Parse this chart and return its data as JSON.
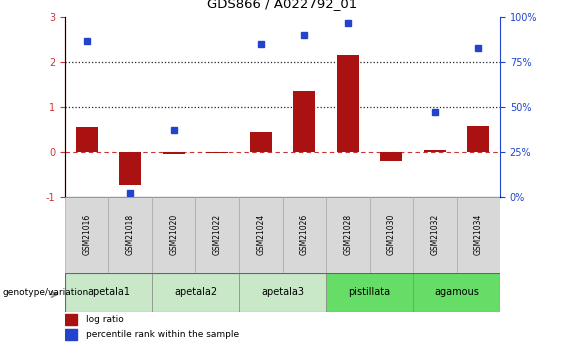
{
  "title": "GDS866 / A022792_01",
  "samples": [
    "GSM21016",
    "GSM21018",
    "GSM21020",
    "GSM21022",
    "GSM21024",
    "GSM21026",
    "GSM21028",
    "GSM21030",
    "GSM21032",
    "GSM21034"
  ],
  "log_ratio": [
    0.55,
    -0.75,
    -0.05,
    -0.03,
    0.45,
    1.35,
    2.15,
    -0.2,
    0.03,
    0.58
  ],
  "percentile_rank_pct": [
    87,
    2,
    37,
    null,
    85,
    90,
    97,
    null,
    47,
    83
  ],
  "groups": [
    {
      "label": "apetala1",
      "start": 0,
      "end": 2,
      "color": "#c8e8c8"
    },
    {
      "label": "apetala2",
      "start": 2,
      "end": 4,
      "color": "#c8e8c8"
    },
    {
      "label": "apetala3",
      "start": 4,
      "end": 6,
      "color": "#c8e8c8"
    },
    {
      "label": "pistillata",
      "start": 6,
      "end": 8,
      "color": "#66dd66"
    },
    {
      "label": "agamous",
      "start": 8,
      "end": 10,
      "color": "#66dd66"
    }
  ],
  "ylim_left": [
    -1,
    3
  ],
  "ylim_right": [
    0,
    100
  ],
  "bar_color": "#aa1111",
  "dot_color": "#2244cc",
  "zero_line_color": "#cc3333",
  "dotted_line_color": "#222222",
  "bg_color": "#ffffff",
  "tick_color_left": "#cc3333",
  "tick_color_right": "#2244cc",
  "legend_red": "log ratio",
  "legend_blue": "percentile rank within the sample",
  "genotype_label": "genotype/variation",
  "bar_width": 0.5,
  "sample_box_color": "#d8d8d8",
  "sample_box_edge": "#aaaaaa"
}
